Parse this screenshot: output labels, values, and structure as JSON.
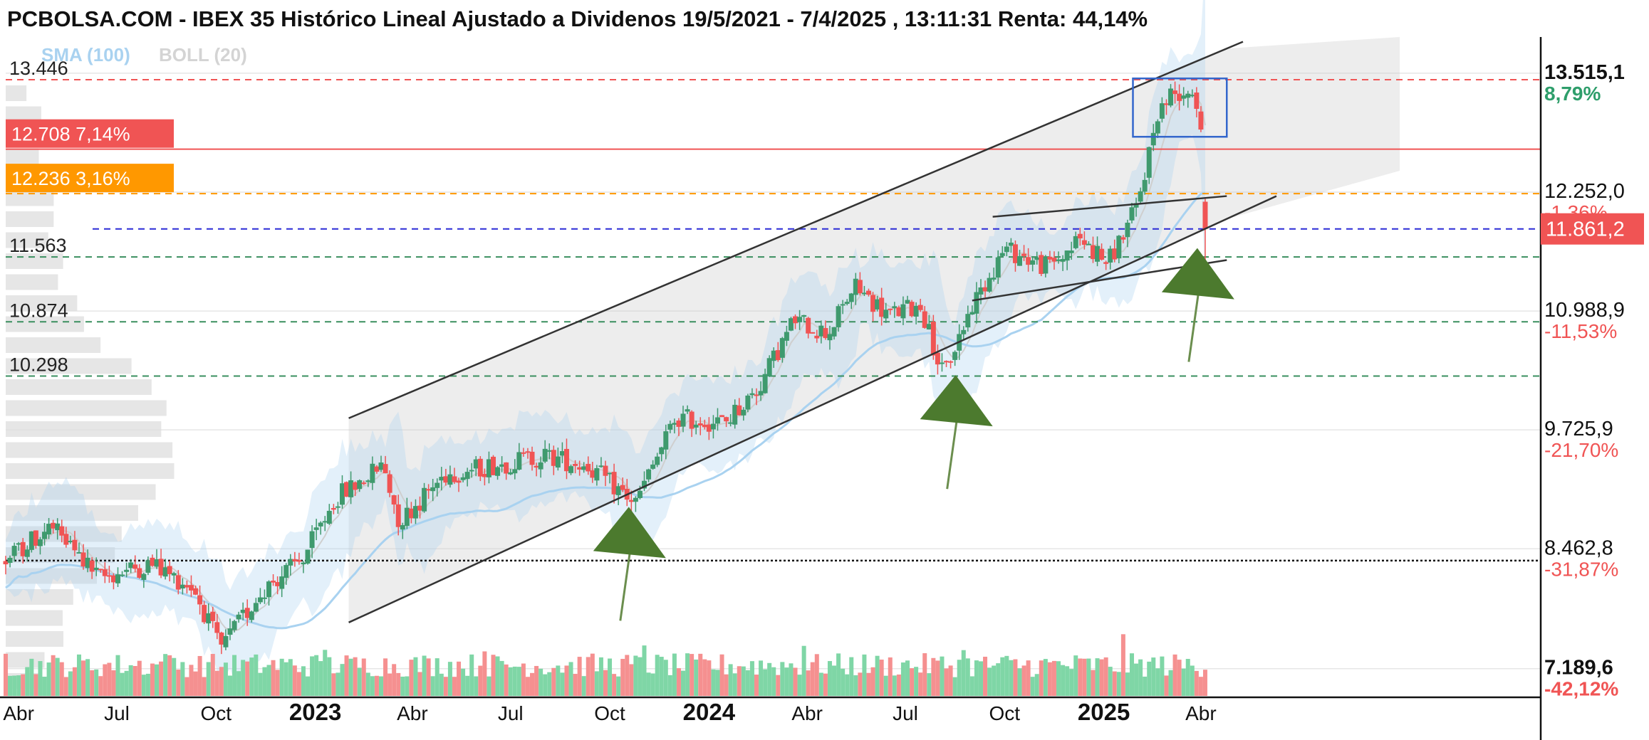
{
  "title": "PCBOLSA.COM - IBEX 35 Histórico Lineal Ajustado a Dividenos 19/5/2021 - 7/4/2025 , 13:11:31 Renta: 44,14%",
  "indicators": [
    {
      "label": "SMA (100)",
      "color": "#a9d2f0"
    },
    {
      "label": "BOLL (20)",
      "color": "#d4d4d4"
    }
  ],
  "chart_data": {
    "type": "candlestick",
    "price_range": [
      6900,
      13900
    ],
    "date_range": [
      "2022-03-20",
      "2025-04-07"
    ],
    "x_ticks": [
      {
        "label": "Abr",
        "date": "2022-04-01",
        "bold": false
      },
      {
        "label": "Jul",
        "date": "2022-07-01",
        "bold": false
      },
      {
        "label": "Oct",
        "date": "2022-10-01",
        "bold": false
      },
      {
        "label": "2023",
        "date": "2023-01-01",
        "bold": true
      },
      {
        "label": "Abr",
        "date": "2023-04-01",
        "bold": false
      },
      {
        "label": "Jul",
        "date": "2023-07-01",
        "bold": false
      },
      {
        "label": "Oct",
        "date": "2023-10-01",
        "bold": false
      },
      {
        "label": "2024",
        "date": "2024-01-01",
        "bold": true
      },
      {
        "label": "Abr",
        "date": "2024-04-01",
        "bold": false
      },
      {
        "label": "Jul",
        "date": "2024-07-01",
        "bold": false
      },
      {
        "label": "Oct",
        "date": "2024-10-01",
        "bold": false
      },
      {
        "label": "2025",
        "date": "2025-01-01",
        "bold": true
      },
      {
        "label": "Abr",
        "date": "2025-04-01",
        "bold": false
      }
    ],
    "right_axis": [
      {
        "price": "13.515,1",
        "pct": "8,79%",
        "value": 13515.1,
        "bold": true,
        "pct_color": "#2e9e6b"
      },
      {
        "price": "12.252,0",
        "pct": "-1,36%",
        "value": 12252.0,
        "bold": false,
        "pct_color": "#f05454"
      },
      {
        "price": "10.988,9",
        "pct": "-11,53%",
        "value": 10988.9,
        "bold": false,
        "pct_color": "#f05454"
      },
      {
        "price": "9.725,9",
        "pct": "-21,70%",
        "value": 9725.9,
        "bold": false,
        "pct_color": "#f05454"
      },
      {
        "price": "8.462,8",
        "pct": "-31,87%",
        "value": 8462.8,
        "bold": false,
        "pct_color": "#f05454"
      },
      {
        "price": "7.189,6",
        "pct": "-42,12%",
        "value": 7189.6,
        "bold": true,
        "pct_color": "#f05454"
      }
    ],
    "current_price": {
      "label": "11.861,2",
      "value": 11861.2,
      "color": "#f05454"
    },
    "horizontal_levels": [
      {
        "label": "13.446",
        "value": 13446,
        "style": "dashed",
        "color": "#f05454",
        "tag": false
      },
      {
        "label": "12.708  7,14%",
        "value": 12708,
        "style": "solid",
        "color": "#f05454",
        "tag": true,
        "tag_color": "#f05454"
      },
      {
        "label": "12.236  3,16%",
        "value": 12236,
        "style": "dashed",
        "color": "#ff9800",
        "tag": true,
        "tag_color": "#ff9800"
      },
      {
        "label": "",
        "value": 11861.2,
        "style": "dashed",
        "color": "#2b2bd6",
        "tag": false
      },
      {
        "label": "11.563",
        "value": 11563,
        "style": "dashed",
        "color": "#3a8f5f",
        "tag": false
      },
      {
        "label": "10.874",
        "value": 10874,
        "style": "dashed",
        "color": "#3a8f5f",
        "tag": false
      },
      {
        "label": "10.298",
        "value": 10298,
        "style": "dashed",
        "color": "#3a8f5f",
        "tag": false
      },
      {
        "label": "",
        "value": 8337,
        "style": "dotted",
        "color": "#111111",
        "tag": false
      }
    ],
    "channel_lines": [
      {
        "from": {
          "date": "2023-02-01",
          "price": 9850
        },
        "to": {
          "date": "2025-05-10",
          "price": 13850
        }
      },
      {
        "from": {
          "date": "2023-02-01",
          "price": 7680
        },
        "to": {
          "date": "2025-06-10",
          "price": 12210
        }
      },
      {
        "from": {
          "date": "2024-09-01",
          "price": 11100
        },
        "to": {
          "date": "2025-04-25",
          "price": 11530
        }
      },
      {
        "from": {
          "date": "2024-09-20",
          "price": 11990
        },
        "to": {
          "date": "2025-04-25",
          "price": 12210
        }
      }
    ],
    "highlight_box": {
      "from": {
        "date": "2025-01-28",
        "price": 13460
      },
      "to": {
        "date": "2025-04-25",
        "price": 12840
      }
    },
    "arrows": [
      {
        "date": "2023-10-20",
        "price": 8530
      },
      {
        "date": "2024-08-18",
        "price": 9930
      },
      {
        "date": "2025-03-30",
        "price": 11280
      }
    ],
    "anchors": [
      [
        "2022-03-20",
        8340
      ],
      [
        "2022-05-01",
        8700
      ],
      [
        "2022-06-15",
        8150
      ],
      [
        "2022-08-01",
        8300
      ],
      [
        "2022-09-10",
        8050
      ],
      [
        "2022-10-05",
        7400
      ],
      [
        "2022-11-15",
        8050
      ],
      [
        "2022-12-20",
        8350
      ],
      [
        "2023-01-20",
        9000
      ],
      [
        "2023-03-05",
        9350
      ],
      [
        "2023-03-20",
        8750
      ],
      [
        "2023-05-01",
        9250
      ],
      [
        "2023-06-15",
        9350
      ],
      [
        "2023-08-01",
        9450
      ],
      [
        "2023-09-10",
        9350
      ],
      [
        "2023-10-25",
        8950
      ],
      [
        "2023-12-01",
        9850
      ],
      [
        "2024-01-15",
        9800
      ],
      [
        "2024-02-15",
        10150
      ],
      [
        "2024-03-20",
        10900
      ],
      [
        "2024-04-20",
        10750
      ],
      [
        "2024-05-15",
        11250
      ],
      [
        "2024-06-15",
        10950
      ],
      [
        "2024-07-15",
        11050
      ],
      [
        "2024-08-05",
        10300
      ],
      [
        "2024-09-01",
        11050
      ],
      [
        "2024-10-01",
        11650
      ],
      [
        "2024-11-10",
        11450
      ],
      [
        "2024-12-10",
        11750
      ],
      [
        "2025-01-05",
        11500
      ],
      [
        "2025-02-01",
        12100
      ],
      [
        "2025-02-20",
        13100
      ],
      [
        "2025-03-05",
        13300
      ],
      [
        "2025-03-25",
        13350
      ],
      [
        "2025-04-01",
        12950
      ],
      [
        "2025-04-04",
        12100
      ],
      [
        "2025-04-07",
        11861
      ]
    ],
    "volume_scale": [
      0,
      1
    ],
    "volume_profile_max": 1
  }
}
